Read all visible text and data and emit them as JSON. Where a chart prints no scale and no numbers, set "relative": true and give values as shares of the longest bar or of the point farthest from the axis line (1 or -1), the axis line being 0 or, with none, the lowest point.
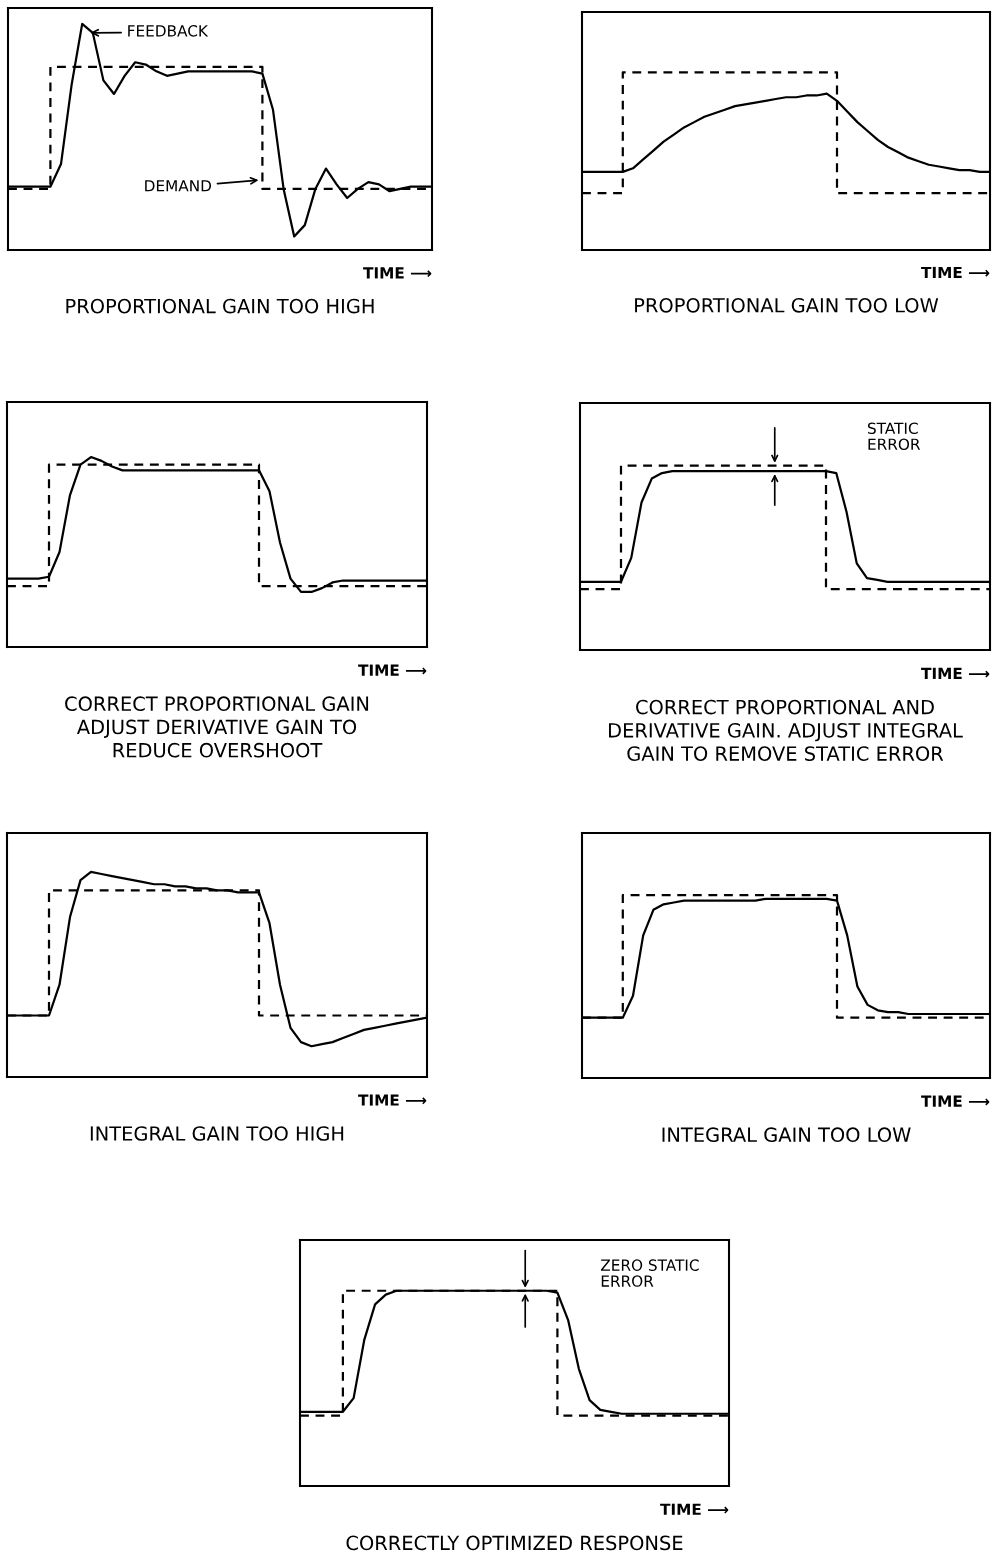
{
  "chart_data": [
    {
      "type": "line",
      "relative": true,
      "tick_labels": false,
      "title": "PROPORTIONAL GAIN TOO HIGH",
      "xlabel": "TIME ⟶",
      "annotations": [
        "FEEDBACK",
        "DEMAND"
      ],
      "categories": [
        null,
        null,
        null,
        null,
        null,
        null,
        null,
        null,
        null,
        null,
        null,
        null,
        null,
        null,
        null,
        null,
        null,
        null,
        null,
        null,
        null,
        null,
        null,
        null,
        null,
        null,
        null,
        null,
        null,
        null,
        null,
        null,
        null,
        null,
        null,
        null,
        null,
        null,
        null,
        null,
        null
      ],
      "series": [
        {
          "type": "step",
          "line_style": "dashed",
          "color": "#000000",
          "values": [
            0.27,
            0.27,
            0.27,
            0.27,
            0.81,
            0.81,
            0.81,
            0.81,
            0.81,
            0.81,
            0.81,
            0.81,
            0.81,
            0.81,
            0.81,
            0.81,
            0.81,
            0.81,
            0.81,
            0.81,
            0.81,
            0.81,
            0.81,
            0.81,
            0.27,
            0.27,
            0.27,
            0.27,
            0.27,
            0.27,
            0.27,
            0.27,
            0.27,
            0.27,
            0.27,
            0.27,
            0.27,
            0.27,
            0.27,
            0.27,
            0.27
          ]
        },
        {
          "type": "line",
          "line_style": "solid",
          "color": "#000000",
          "values": [
            0.28,
            0.28,
            0.28,
            0.28,
            0.28,
            0.38,
            0.73,
            1.0,
            0.96,
            0.75,
            0.69,
            0.77,
            0.83,
            0.82,
            0.79,
            0.77,
            0.78,
            0.79,
            0.79,
            0.79,
            0.79,
            0.79,
            0.79,
            0.79,
            0.78,
            0.62,
            0.27,
            0.06,
            0.11,
            0.27,
            0.36,
            0.29,
            0.23,
            0.27,
            0.3,
            0.29,
            0.26,
            0.27,
            0.28,
            0.28,
            0.28
          ]
        }
      ]
    },
    {
      "type": "line",
      "relative": true,
      "tick_labels": false,
      "title": "PROPORTIONAL GAIN TOO LOW",
      "xlabel": "TIME ⟶",
      "categories": [
        null,
        null,
        null,
        null,
        null,
        null,
        null,
        null,
        null,
        null,
        null,
        null,
        null,
        null,
        null,
        null,
        null,
        null,
        null,
        null,
        null,
        null,
        null,
        null,
        null,
        null,
        null,
        null,
        null,
        null,
        null,
        null,
        null,
        null,
        null,
        null,
        null,
        null,
        null,
        null,
        null
      ],
      "series": [
        {
          "type": "step",
          "line_style": "dashed",
          "color": "#000000",
          "values": [
            0.32,
            0.32,
            0.32,
            0.32,
            1.0,
            1.0,
            1.0,
            1.0,
            1.0,
            1.0,
            1.0,
            1.0,
            1.0,
            1.0,
            1.0,
            1.0,
            1.0,
            1.0,
            1.0,
            1.0,
            1.0,
            1.0,
            1.0,
            1.0,
            1.0,
            0.32,
            0.32,
            0.32,
            0.32,
            0.32,
            0.32,
            0.32,
            0.32,
            0.32,
            0.32,
            0.32,
            0.32,
            0.32,
            0.32,
            0.32,
            0.32
          ]
        },
        {
          "type": "line",
          "line_style": "solid",
          "color": "#000000",
          "values": [
            0.44,
            0.44,
            0.44,
            0.44,
            0.44,
            0.46,
            0.51,
            0.56,
            0.61,
            0.65,
            0.69,
            0.72,
            0.75,
            0.77,
            0.79,
            0.81,
            0.82,
            0.83,
            0.84,
            0.85,
            0.86,
            0.86,
            0.87,
            0.87,
            0.88,
            0.84,
            0.78,
            0.72,
            0.67,
            0.62,
            0.58,
            0.55,
            0.52,
            0.5,
            0.48,
            0.47,
            0.46,
            0.45,
            0.45,
            0.44,
            0.44
          ]
        }
      ]
    },
    {
      "type": "line",
      "relative": true,
      "tick_labels": false,
      "title": "CORRECT PROPORTIONAL GAIN\nADJUST DERIVATIVE GAIN TO\nREDUCE OVERSHOOT",
      "xlabel": "TIME ⟶",
      "categories": [
        null,
        null,
        null,
        null,
        null,
        null,
        null,
        null,
        null,
        null,
        null,
        null,
        null,
        null,
        null,
        null,
        null,
        null,
        null,
        null,
        null,
        null,
        null,
        null,
        null,
        null,
        null,
        null,
        null,
        null,
        null,
        null,
        null,
        null,
        null,
        null,
        null,
        null,
        null,
        null,
        null
      ],
      "series": [
        {
          "type": "step",
          "line_style": "dashed",
          "color": "#000000",
          "values": [
            0.32,
            0.32,
            0.32,
            0.32,
            0.96,
            0.96,
            0.96,
            0.96,
            0.96,
            0.96,
            0.96,
            0.96,
            0.96,
            0.96,
            0.96,
            0.96,
            0.96,
            0.96,
            0.96,
            0.96,
            0.96,
            0.96,
            0.96,
            0.96,
            0.32,
            0.32,
            0.32,
            0.32,
            0.32,
            0.32,
            0.32,
            0.32,
            0.32,
            0.32,
            0.32,
            0.32,
            0.32,
            0.32,
            0.32,
            0.32,
            0.32
          ]
        },
        {
          "type": "line",
          "line_style": "solid",
          "color": "#000000",
          "values": [
            0.36,
            0.36,
            0.36,
            0.36,
            0.37,
            0.5,
            0.8,
            0.96,
            1.0,
            0.98,
            0.95,
            0.93,
            0.93,
            0.93,
            0.93,
            0.93,
            0.93,
            0.93,
            0.93,
            0.93,
            0.93,
            0.93,
            0.93,
            0.93,
            0.93,
            0.82,
            0.55,
            0.36,
            0.29,
            0.29,
            0.31,
            0.34,
            0.35,
            0.35,
            0.35,
            0.35,
            0.35,
            0.35,
            0.35,
            0.35,
            0.35
          ]
        }
      ]
    },
    {
      "type": "line",
      "relative": true,
      "tick_labels": false,
      "title": "CORRECT PROPORTIONAL AND\nDERIVATIVE GAIN. ADJUST INTEGRAL\nGAIN TO REMOVE STATIC ERROR",
      "xlabel": "TIME ⟶",
      "annotations": [
        "STATIC\nERROR"
      ],
      "categories": [
        null,
        null,
        null,
        null,
        null,
        null,
        null,
        null,
        null,
        null,
        null,
        null,
        null,
        null,
        null,
        null,
        null,
        null,
        null,
        null,
        null,
        null,
        null,
        null,
        null,
        null,
        null,
        null,
        null,
        null,
        null,
        null,
        null,
        null,
        null,
        null,
        null,
        null,
        null,
        null,
        null
      ],
      "series": [
        {
          "type": "step",
          "line_style": "dashed",
          "color": "#000000",
          "values": [
            0.33,
            0.33,
            0.33,
            0.33,
            1.0,
            1.0,
            1.0,
            1.0,
            1.0,
            1.0,
            1.0,
            1.0,
            1.0,
            1.0,
            1.0,
            1.0,
            1.0,
            1.0,
            1.0,
            1.0,
            1.0,
            1.0,
            1.0,
            1.0,
            0.33,
            0.33,
            0.33,
            0.33,
            0.33,
            0.33,
            0.33,
            0.33,
            0.33,
            0.33,
            0.33,
            0.33,
            0.33,
            0.33,
            0.33,
            0.33,
            0.33
          ]
        },
        {
          "type": "line",
          "line_style": "solid",
          "color": "#000000",
          "values": [
            0.37,
            0.37,
            0.37,
            0.37,
            0.37,
            0.5,
            0.8,
            0.93,
            0.96,
            0.97,
            0.97,
            0.97,
            0.97,
            0.97,
            0.97,
            0.97,
            0.97,
            0.97,
            0.97,
            0.97,
            0.97,
            0.97,
            0.97,
            0.97,
            0.97,
            0.96,
            0.75,
            0.47,
            0.39,
            0.38,
            0.37,
            0.37,
            0.37,
            0.37,
            0.37,
            0.37,
            0.37,
            0.37,
            0.37,
            0.37,
            0.37
          ]
        }
      ]
    },
    {
      "type": "line",
      "relative": true,
      "tick_labels": false,
      "title": "INTEGRAL GAIN TOO HIGH",
      "xlabel": "TIME ⟶",
      "categories": [
        null,
        null,
        null,
        null,
        null,
        null,
        null,
        null,
        null,
        null,
        null,
        null,
        null,
        null,
        null,
        null,
        null,
        null,
        null,
        null,
        null,
        null,
        null,
        null,
        null,
        null,
        null,
        null,
        null,
        null,
        null,
        null,
        null,
        null,
        null,
        null,
        null,
        null,
        null,
        null,
        null
      ],
      "series": [
        {
          "type": "step",
          "line_style": "dashed",
          "color": "#000000",
          "values": [
            0.3,
            0.3,
            0.3,
            0.3,
            0.91,
            0.91,
            0.91,
            0.91,
            0.91,
            0.91,
            0.91,
            0.91,
            0.91,
            0.91,
            0.91,
            0.91,
            0.91,
            0.91,
            0.91,
            0.91,
            0.91,
            0.91,
            0.91,
            0.91,
            0.3,
            0.3,
            0.3,
            0.3,
            0.3,
            0.3,
            0.3,
            0.3,
            0.3,
            0.3,
            0.3,
            0.3,
            0.3,
            0.3,
            0.3,
            0.3,
            0.3
          ]
        },
        {
          "type": "line",
          "line_style": "solid",
          "color": "#000000",
          "values": [
            0.3,
            0.3,
            0.3,
            0.3,
            0.3,
            0.45,
            0.78,
            0.96,
            1.0,
            0.99,
            0.98,
            0.97,
            0.96,
            0.95,
            0.94,
            0.94,
            0.93,
            0.93,
            0.92,
            0.92,
            0.91,
            0.91,
            0.9,
            0.9,
            0.9,
            0.75,
            0.45,
            0.24,
            0.17,
            0.15,
            0.16,
            0.17,
            0.19,
            0.21,
            0.23,
            0.24,
            0.25,
            0.26,
            0.27,
            0.28,
            0.29
          ]
        }
      ]
    },
    {
      "type": "line",
      "relative": true,
      "tick_labels": false,
      "title": "INTEGRAL GAIN TOO LOW",
      "xlabel": "TIME ⟶",
      "categories": [
        null,
        null,
        null,
        null,
        null,
        null,
        null,
        null,
        null,
        null,
        null,
        null,
        null,
        null,
        null,
        null,
        null,
        null,
        null,
        null,
        null,
        null,
        null,
        null,
        null,
        null,
        null,
        null,
        null,
        null,
        null,
        null,
        null,
        null,
        null,
        null,
        null,
        null,
        null,
        null,
        null
      ],
      "series": [
        {
          "type": "step",
          "line_style": "dashed",
          "color": "#000000",
          "values": [
            0.33,
            0.33,
            0.33,
            0.33,
            1.0,
            1.0,
            1.0,
            1.0,
            1.0,
            1.0,
            1.0,
            1.0,
            1.0,
            1.0,
            1.0,
            1.0,
            1.0,
            1.0,
            1.0,
            1.0,
            1.0,
            1.0,
            1.0,
            1.0,
            1.0,
            0.33,
            0.33,
            0.33,
            0.33,
            0.33,
            0.33,
            0.33,
            0.33,
            0.33,
            0.33,
            0.33,
            0.33,
            0.33,
            0.33,
            0.33,
            0.33
          ]
        },
        {
          "type": "line",
          "line_style": "solid",
          "color": "#000000",
          "values": [
            0.33,
            0.33,
            0.33,
            0.33,
            0.33,
            0.45,
            0.78,
            0.92,
            0.95,
            0.96,
            0.97,
            0.97,
            0.97,
            0.97,
            0.97,
            0.97,
            0.97,
            0.97,
            0.98,
            0.98,
            0.98,
            0.98,
            0.98,
            0.98,
            0.98,
            0.97,
            0.78,
            0.5,
            0.4,
            0.37,
            0.36,
            0.36,
            0.35,
            0.35,
            0.35,
            0.35,
            0.35,
            0.35,
            0.35,
            0.35,
            0.35
          ]
        }
      ]
    },
    {
      "type": "line",
      "relative": true,
      "tick_labels": false,
      "title": "CORRECTLY OPTIMIZED RESPONSE",
      "xlabel": "TIME ⟶",
      "annotations": [
        "ZERO STATIC\nERROR"
      ],
      "categories": [
        null,
        null,
        null,
        null,
        null,
        null,
        null,
        null,
        null,
        null,
        null,
        null,
        null,
        null,
        null,
        null,
        null,
        null,
        null,
        null,
        null,
        null,
        null,
        null,
        null,
        null,
        null,
        null,
        null,
        null,
        null,
        null,
        null,
        null,
        null,
        null,
        null,
        null,
        null,
        null,
        null
      ],
      "series": [
        {
          "type": "step",
          "line_style": "dashed",
          "color": "#000000",
          "values": [
            0.36,
            0.36,
            0.36,
            0.36,
            1.0,
            1.0,
            1.0,
            1.0,
            1.0,
            1.0,
            1.0,
            1.0,
            1.0,
            1.0,
            1.0,
            1.0,
            1.0,
            1.0,
            1.0,
            1.0,
            1.0,
            1.0,
            1.0,
            1.0,
            0.36,
            0.36,
            0.36,
            0.36,
            0.36,
            0.36,
            0.36,
            0.36,
            0.36,
            0.36,
            0.36,
            0.36,
            0.36,
            0.36,
            0.36,
            0.36,
            0.36
          ]
        },
        {
          "type": "line",
          "line_style": "solid",
          "color": "#000000",
          "values": [
            0.38,
            0.38,
            0.38,
            0.38,
            0.38,
            0.45,
            0.75,
            0.93,
            0.98,
            1.0,
            1.0,
            1.0,
            1.0,
            1.0,
            1.0,
            1.0,
            1.0,
            1.0,
            1.0,
            1.0,
            1.0,
            1.0,
            1.0,
            1.0,
            0.99,
            0.85,
            0.6,
            0.44,
            0.39,
            0.38,
            0.37,
            0.37,
            0.37,
            0.37,
            0.37,
            0.37,
            0.37,
            0.37,
            0.37,
            0.37,
            0.37
          ]
        }
      ]
    }
  ]
}
